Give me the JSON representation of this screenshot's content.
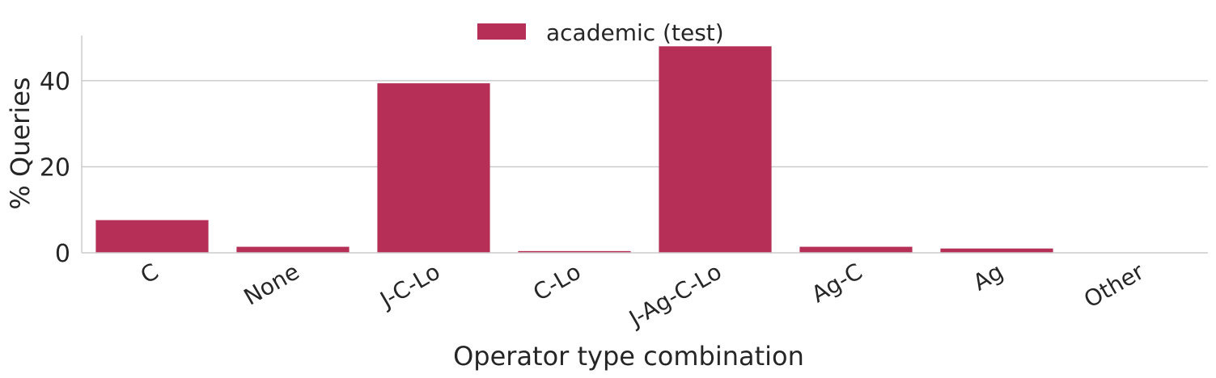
{
  "chart_data": {
    "type": "bar",
    "title": "",
    "xlabel": "Operator type combination",
    "ylabel": "% Queries",
    "categories": [
      "C",
      "None",
      "J-C-Lo",
      "C-Lo",
      "J-Ag-C-Lo",
      "Ag-C",
      "Ag",
      "Other"
    ],
    "series": [
      {
        "name": "academic (test)",
        "values": [
          7.6,
          1.4,
          39.4,
          0.4,
          48.0,
          1.4,
          1.0,
          0.0
        ]
      }
    ],
    "ylim": [
      0,
      50.5
    ],
    "yticks": [
      0,
      20,
      40
    ],
    "grid": "horizontal",
    "legend_position": "top-center",
    "colors": {
      "bar": "#b52f56",
      "grid": "#cccccc",
      "axis": "#cccccc",
      "text": "#262626"
    }
  }
}
